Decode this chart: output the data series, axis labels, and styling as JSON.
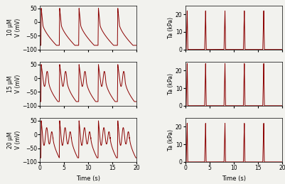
{
  "line_color": "#8B0000",
  "line_width": 0.7,
  "xlim": [
    0,
    20
  ],
  "v_ylim": [
    -100,
    60
  ],
  "ta_ylim": [
    0,
    25
  ],
  "v_yticks": [
    -100,
    -50,
    0,
    50
  ],
  "ta_yticks": [
    0,
    10,
    20
  ],
  "xlabel": "Time (s)",
  "row_labels": [
    "10 μM",
    "15 μM",
    "20 μM"
  ],
  "v_ylabel": "V (mV)",
  "ta_ylabel": "Ta (kPa)",
  "bg_color": "#f2f2ee",
  "beat_times_10": [
    0.2,
    4.0,
    8.0,
    12.0,
    16.0
  ],
  "beat_times_15": [
    0.2,
    4.0,
    8.0,
    12.0,
    16.0
  ],
  "beat_times_20": [
    0.2,
    4.0,
    8.0,
    12.0,
    16.0
  ],
  "period_10": 4.0,
  "period_15": 4.0,
  "period_20": 4.0
}
